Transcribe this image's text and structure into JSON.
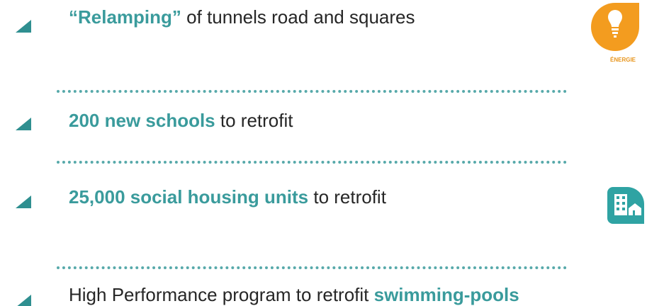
{
  "items": [
    {
      "parts": [
        {
          "text": "“Relamping”",
          "emphasis": true
        },
        {
          "text": "of tunnels road and squares",
          "emphasis": false
        }
      ]
    },
    {
      "parts": [
        {
          "text": "200 new schools",
          "emphasis": true
        },
        {
          "text": "to retrofit",
          "emphasis": false
        }
      ]
    },
    {
      "parts": [
        {
          "text": "25,000 social housing units",
          "emphasis": true
        },
        {
          "text": "to retrofit",
          "emphasis": false
        }
      ]
    },
    {
      "parts": [
        {
          "text": "High Performance program to retrofit",
          "emphasis": false
        },
        {
          "text": "swimming-pools",
          "emphasis": true
        }
      ]
    }
  ],
  "icons": [
    {
      "label": "ÉNERGIE"
    }
  ]
}
